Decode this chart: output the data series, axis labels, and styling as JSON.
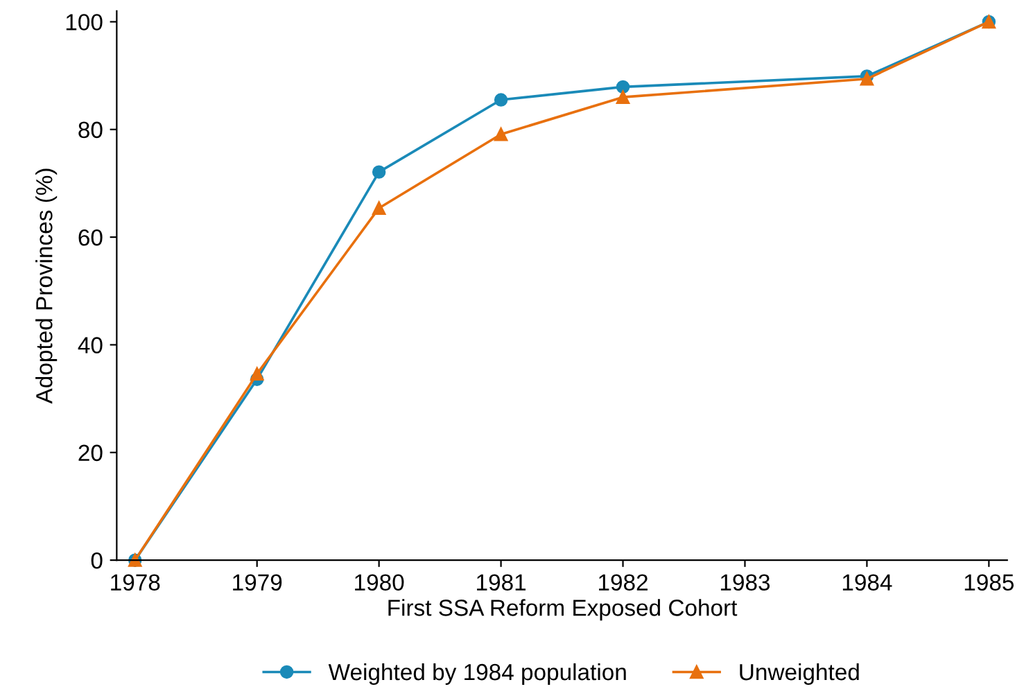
{
  "chart_data": {
    "type": "line",
    "xlabel": "First SSA Reform Exposed Cohort",
    "ylabel": "Adopted Provinces (%)",
    "xlim": [
      1977.85,
      1985.15
    ],
    "xticks": [
      1978,
      1979,
      1980,
      1981,
      1982,
      1983,
      1984,
      1985
    ],
    "ylim": [
      0,
      102
    ],
    "yticks": [
      0,
      20,
      40,
      60,
      80,
      100
    ],
    "grid": false,
    "legend": "bottom",
    "series": [
      {
        "name": "Weighted by 1984 population",
        "color": "#1a8ab8",
        "marker": "circle",
        "x": [
          1978,
          1979,
          1980,
          1981,
          1982,
          1984,
          1985
        ],
        "values": [
          0,
          33.6,
          72.1,
          85.5,
          87.9,
          89.9,
          100
        ]
      },
      {
        "name": "Unweighted",
        "color": "#e8700e",
        "marker": "triangle",
        "x": [
          1978,
          1979,
          1980,
          1981,
          1982,
          1984,
          1985
        ],
        "values": [
          0,
          34.6,
          65.4,
          79.1,
          86.0,
          89.4,
          100
        ]
      }
    ]
  }
}
